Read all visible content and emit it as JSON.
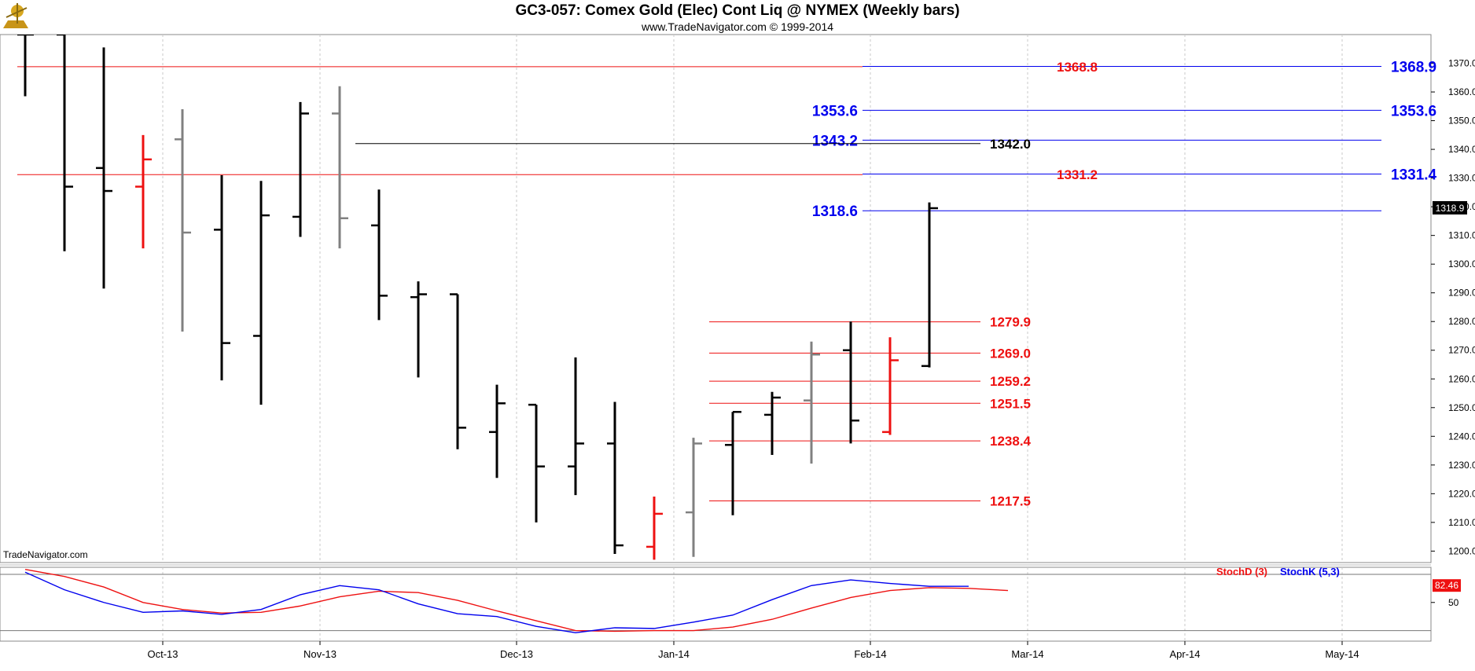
{
  "header": {
    "title": "GC3-057:  Comex Gold (Elec) Cont Liq @ NYMEX  (Weekly bars)",
    "subtitle": "www.TradeNavigator.com © 1999-2014"
  },
  "watermark": "TradeNavigator.com",
  "colors": {
    "up": "#000000",
    "down_gray": "#808080",
    "red": "#ee1111",
    "blue": "#0000ee",
    "black": "#000000",
    "grid": "#c8c8c8"
  },
  "chart_data": [
    {
      "type": "ohlc",
      "title": "GC3-057:  Comex Gold (Elec) Cont Liq @ NYMEX  (Weekly bars)",
      "ylim": [
        1196,
        1380
      ],
      "y_ticks": [
        1200,
        1210,
        1220,
        1230,
        1240,
        1250,
        1260,
        1270,
        1280,
        1290,
        1300,
        1310,
        1320,
        1330,
        1340,
        1350,
        1360,
        1370
      ],
      "x_ticks": [
        {
          "label": "Oct-13",
          "week": 3.5
        },
        {
          "label": "Nov-13",
          "week": 7.5
        },
        {
          "label": "Dec-13",
          "week": 12.5
        },
        {
          "label": "Jan-14",
          "week": 16.5
        },
        {
          "label": "Feb-14",
          "week": 21.5
        },
        {
          "label": "Mar-14",
          "week": 25.5
        },
        {
          "label": "Apr-14",
          "week": 29.5
        },
        {
          "label": "May-14",
          "week": 33.5
        }
      ],
      "bars": [
        {
          "w": 0,
          "o": 1380,
          "h": 1380,
          "l": 1358.5,
          "c": 1380,
          "color": "black"
        },
        {
          "w": 1,
          "o": 1380,
          "h": 1380,
          "l": 1304.5,
          "c": 1327,
          "color": "black"
        },
        {
          "w": 2,
          "o": 1333.5,
          "h": 1375.5,
          "l": 1291.5,
          "c": 1325.5,
          "color": "black"
        },
        {
          "w": 3,
          "o": 1327,
          "h": 1345,
          "l": 1305.5,
          "c": 1336.5,
          "color": "red"
        },
        {
          "w": 4,
          "o": 1343.5,
          "h": 1354,
          "l": 1276.5,
          "c": 1311,
          "color": "gray"
        },
        {
          "w": 5,
          "o": 1312,
          "h": 1331,
          "l": 1259.5,
          "c": 1272.5,
          "color": "black"
        },
        {
          "w": 6,
          "o": 1275,
          "h": 1329,
          "l": 1251,
          "c": 1317,
          "color": "black"
        },
        {
          "w": 7,
          "o": 1316.5,
          "h": 1356.5,
          "l": 1309.5,
          "c": 1352.5,
          "color": "black"
        },
        {
          "w": 8,
          "o": 1352.5,
          "h": 1362,
          "l": 1305.5,
          "c": 1316,
          "color": "gray"
        },
        {
          "w": 9,
          "o": 1313.5,
          "h": 1326,
          "l": 1280.5,
          "c": 1289,
          "color": "black"
        },
        {
          "w": 10,
          "o": 1288.5,
          "h": 1294,
          "l": 1260.5,
          "c": 1289.5,
          "color": "black"
        },
        {
          "w": 11,
          "o": 1289.5,
          "h": 1289.5,
          "l": 1235.5,
          "c": 1243,
          "color": "black"
        },
        {
          "w": 12,
          "o": 1241.5,
          "h": 1258,
          "l": 1225.5,
          "c": 1251.5,
          "color": "black"
        },
        {
          "w": 13,
          "o": 1251,
          "h": 1251,
          "l": 1210,
          "c": 1229.5,
          "color": "black"
        },
        {
          "w": 14,
          "o": 1229.5,
          "h": 1267.5,
          "l": 1219.5,
          "c": 1237.5,
          "color": "black"
        },
        {
          "w": 15,
          "o": 1237.5,
          "h": 1252,
          "l": 1199,
          "c": 1202,
          "color": "black"
        },
        {
          "w": 16,
          "o": 1201.5,
          "h": 1219,
          "l": 1197,
          "c": 1213,
          "color": "red"
        },
        {
          "w": 17,
          "o": 1213.5,
          "h": 1239.5,
          "l": 1198,
          "c": 1237.5,
          "color": "gray"
        },
        {
          "w": 18,
          "o": 1237,
          "h": 1248.5,
          "l": 1212.5,
          "c": 1248.5,
          "color": "black"
        },
        {
          "w": 19,
          "o": 1247.5,
          "h": 1255.5,
          "l": 1233.5,
          "c": 1253.5,
          "color": "black"
        },
        {
          "w": 20,
          "o": 1252.5,
          "h": 1273,
          "l": 1230.5,
          "c": 1268.5,
          "color": "gray"
        },
        {
          "w": 21,
          "o": 1270,
          "h": 1280,
          "l": 1237.5,
          "c": 1245.5,
          "color": "black"
        },
        {
          "w": 22,
          "o": 1241.5,
          "h": 1274.5,
          "l": 1240.5,
          "c": 1266.5,
          "color": "red"
        },
        {
          "w": 23,
          "o": 1264.5,
          "h": 1321.5,
          "l": 1264,
          "c": 1319.5,
          "color": "black"
        }
      ],
      "price_badge": "1318.9",
      "levels": [
        {
          "value": 1368.9,
          "label": "1368.9",
          "color": "blue",
          "x_from": 21.3,
          "x_to": 34.5,
          "label_at": "right"
        },
        {
          "value": 1368.8,
          "label": "1368.8",
          "color": "red",
          "x_from": -0.2,
          "x_to": 21.3,
          "label_at": "mid"
        },
        {
          "value": 1353.6,
          "label": "1353.6",
          "color": "blue",
          "x_from": 21.3,
          "x_to": 34.5,
          "label_at": "both"
        },
        {
          "value": 1343.2,
          "label": "1343.2",
          "color": "blue",
          "x_from": 21.3,
          "x_to": 34.5,
          "label_at": "left"
        },
        {
          "value": 1342.0,
          "label": "1342.0",
          "color": "black",
          "x_from": 8.4,
          "x_to": 24.3,
          "label_at": "end"
        },
        {
          "value": 1331.4,
          "label": "1331.4",
          "color": "blue",
          "x_from": 21.3,
          "x_to": 34.5,
          "label_at": "right"
        },
        {
          "value": 1331.2,
          "label": "1331.2",
          "color": "red",
          "x_from": -0.2,
          "x_to": 21.3,
          "label_at": "mid"
        },
        {
          "value": 1318.6,
          "label": "1318.6",
          "color": "blue",
          "x_from": 21.3,
          "x_to": 34.5,
          "label_at": "left"
        },
        {
          "value": 1279.9,
          "label": "1279.9",
          "color": "red",
          "x_from": 17.4,
          "x_to": 24.3,
          "label_at": "end"
        },
        {
          "value": 1269.0,
          "label": "1269.0",
          "color": "red",
          "x_from": 17.4,
          "x_to": 24.3,
          "label_at": "end"
        },
        {
          "value": 1259.2,
          "label": "1259.2",
          "color": "red",
          "x_from": 17.4,
          "x_to": 24.3,
          "label_at": "end"
        },
        {
          "value": 1251.5,
          "label": "1251.5",
          "color": "red",
          "x_from": 17.4,
          "x_to": 24.3,
          "label_at": "end"
        },
        {
          "value": 1238.4,
          "label": "1238.4",
          "color": "red",
          "x_from": 17.4,
          "x_to": 24.3,
          "label_at": "end"
        },
        {
          "value": 1217.5,
          "label": "1217.5",
          "color": "red",
          "x_from": 17.4,
          "x_to": 24.3,
          "label_at": "end"
        }
      ]
    },
    {
      "type": "line",
      "ylim": [
        -5,
        100
      ],
      "y_ticks": [
        50
      ],
      "series": [
        {
          "name": "StochD (3)",
          "color": "red",
          "values": [
            97,
            87,
            72,
            50,
            40,
            35,
            36,
            45,
            58,
            66,
            64,
            53,
            38,
            24,
            10,
            9,
            10,
            10,
            15,
            26,
            42,
            57,
            67,
            71,
            70,
            67
          ]
        },
        {
          "name": "StochK (5,3)",
          "color": "blue",
          "values": [
            93,
            68,
            50,
            36,
            38,
            33,
            40,
            61,
            74,
            68,
            48,
            34,
            30,
            16,
            7,
            14,
            13,
            22,
            32,
            54,
            74,
            82,
            77,
            73,
            73
          ]
        }
      ],
      "level_badge": "82.46",
      "ref_lines": [
        90,
        10
      ]
    }
  ]
}
